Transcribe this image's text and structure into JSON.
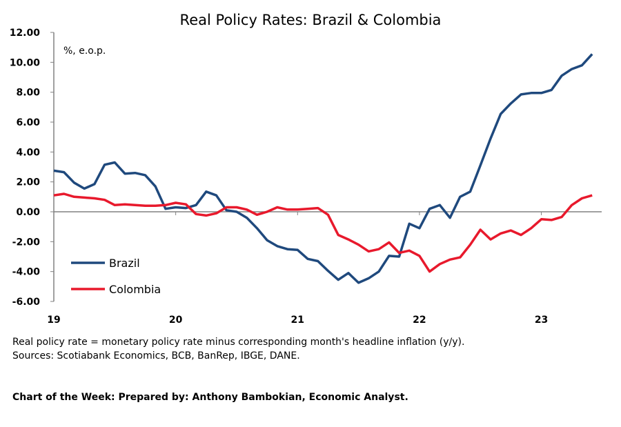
{
  "chart_data": {
    "type": "line",
    "title": "Real Policy Rates: Brazil & Colombia",
    "unit_label": "%, e.o.p.",
    "x_tick_labels": [
      "19",
      "20",
      "21",
      "22",
      "23"
    ],
    "x_frequency": "monthly",
    "x_start": "2019-01",
    "x_end": "2023-06",
    "ylim": [
      -6,
      12
    ],
    "y_ticks": [
      "12.00",
      "10.00",
      "8.00",
      "6.00",
      "4.00",
      "2.00",
      "0.00",
      "-2.00",
      "-4.00",
      "-6.00"
    ],
    "y_tick_values": [
      12,
      10,
      8,
      6,
      4,
      2,
      0,
      -2,
      -4,
      -6
    ],
    "grid": false,
    "legend_placement": "bottom-left",
    "series": [
      {
        "name": "Brazil",
        "color": "#1F497D",
        "values": [
          2.75,
          2.65,
          1.95,
          1.55,
          1.85,
          3.15,
          3.3,
          2.55,
          2.6,
          2.45,
          1.7,
          0.2,
          0.3,
          0.25,
          0.45,
          1.35,
          1.1,
          0.1,
          0.0,
          -0.4,
          -1.1,
          -1.9,
          -2.3,
          -2.5,
          -2.55,
          -3.15,
          -3.3,
          -3.95,
          -4.55,
          -4.1,
          -4.75,
          -4.45,
          -4.0,
          -2.95,
          -3.0,
          -0.8,
          -1.1,
          0.2,
          0.45,
          -0.4,
          1.0,
          1.35,
          3.1,
          4.9,
          6.55,
          7.25,
          7.85,
          7.95,
          7.95,
          8.15,
          9.1,
          9.55,
          9.8,
          10.55
        ]
      },
      {
        "name": "Colombia",
        "color": "#E8192C",
        "values": [
          1.1,
          1.2,
          1.0,
          0.95,
          0.9,
          0.8,
          0.45,
          0.5,
          0.45,
          0.4,
          0.4,
          0.45,
          0.6,
          0.5,
          -0.15,
          -0.25,
          -0.1,
          0.3,
          0.3,
          0.15,
          -0.2,
          0.0,
          0.3,
          0.15,
          0.15,
          0.2,
          0.25,
          -0.2,
          -1.55,
          -1.85,
          -2.2,
          -2.65,
          -2.5,
          -2.05,
          -2.75,
          -2.6,
          -2.95,
          -4.0,
          -3.5,
          -3.2,
          -3.05,
          -2.2,
          -1.2,
          -1.85,
          -1.45,
          -1.25,
          -1.55,
          -1.1,
          -0.5,
          -0.55,
          -0.35,
          0.45,
          0.9,
          1.1
        ]
      }
    ]
  },
  "notes": {
    "definition": "Real policy rate = monetary policy rate minus corresponding month's headline inflation (y/y).",
    "sources": "Sources: Scotiabank Economics, BCB, BanRep, IBGE, DANE."
  },
  "footer": "Chart of the Week:  Prepared by: Anthony Bambokian, Economic Analyst."
}
